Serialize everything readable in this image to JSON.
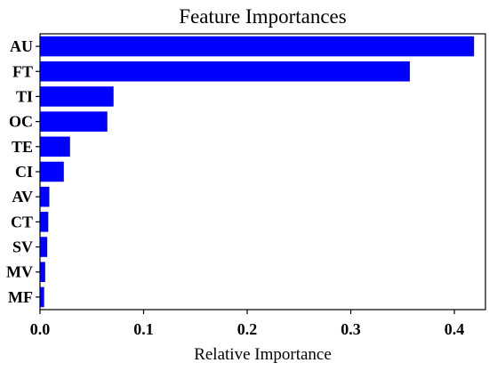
{
  "chart_data": {
    "type": "bar",
    "orientation": "horizontal",
    "title": "Feature Importances",
    "xlabel": "Relative Importance",
    "ylabel": "",
    "categories": [
      "AU",
      "FT",
      "TI",
      "OC",
      "TE",
      "CI",
      "AV",
      "CT",
      "SV",
      "MV",
      "MF"
    ],
    "values": [
      0.419,
      0.357,
      0.071,
      0.065,
      0.029,
      0.023,
      0.009,
      0.008,
      0.007,
      0.005,
      0.004
    ],
    "xlim": [
      0.0,
      0.43
    ],
    "xticks": [
      "0.0",
      "0.1",
      "0.2",
      "0.3",
      "0.4"
    ],
    "bar_color": "#0000ff",
    "grid": false,
    "legend": "none"
  }
}
